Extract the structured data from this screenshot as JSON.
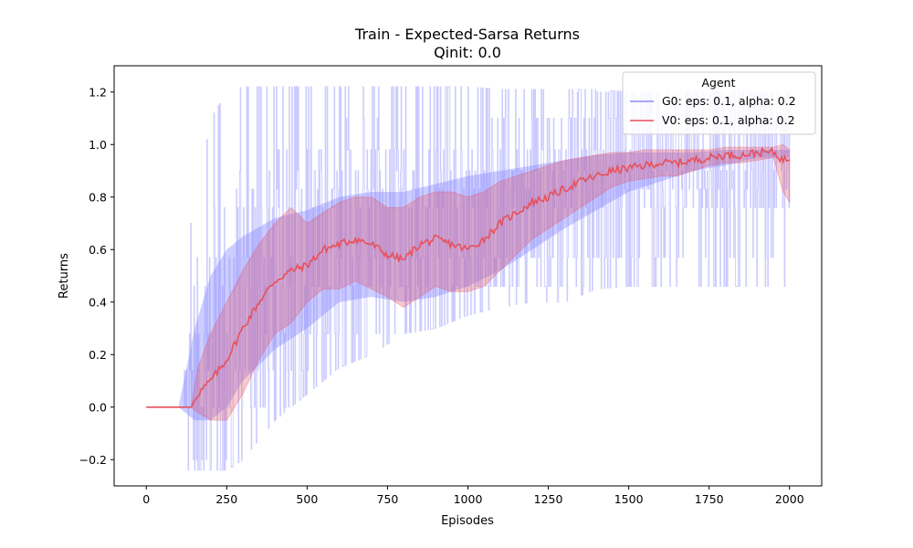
{
  "chart_data": {
    "type": "line",
    "title": "Train - Expected-Sarsa Returns",
    "subtitle": "Qinit: 0.0",
    "xlabel": "Episodes",
    "ylabel": "Returns",
    "xlim": [
      -100,
      2100
    ],
    "ylim": [
      -0.3,
      1.3
    ],
    "xticks": [
      0,
      250,
      500,
      750,
      1000,
      1250,
      1500,
      1750,
      2000
    ],
    "yticks": [
      -0.2,
      0.0,
      0.2,
      0.4,
      0.6,
      0.8,
      1.0,
      1.2
    ],
    "legend": {
      "title": "Agent",
      "position": "top-right"
    },
    "series": [
      {
        "name": "G0: eps: 0.1, alpha: 0.2",
        "color": "#6f6fff",
        "style": "noisy-band",
        "x": [
          0,
          100,
          150,
          200,
          250,
          300,
          400,
          500,
          600,
          700,
          800,
          900,
          1000,
          1100,
          1200,
          1300,
          1400,
          1500,
          1600,
          1700,
          1800,
          1900,
          2000
        ],
        "mean": [
          0.0,
          0.0,
          0.05,
          0.12,
          0.22,
          0.32,
          0.45,
          0.5,
          0.6,
          0.62,
          0.6,
          0.62,
          0.66,
          0.72,
          0.78,
          0.82,
          0.86,
          0.9,
          0.93,
          0.95,
          0.96,
          0.97,
          0.97
        ],
        "upper": [
          0.0,
          0.0,
          0.3,
          0.5,
          0.6,
          0.65,
          0.72,
          0.75,
          0.8,
          0.82,
          0.82,
          0.85,
          0.88,
          0.9,
          0.92,
          0.94,
          0.96,
          0.97,
          0.97,
          0.97,
          0.98,
          0.98,
          0.98
        ],
        "lower": [
          0.0,
          0.0,
          -0.05,
          -0.05,
          0.0,
          0.1,
          0.22,
          0.3,
          0.4,
          0.42,
          0.4,
          0.42,
          0.46,
          0.52,
          0.6,
          0.68,
          0.75,
          0.82,
          0.86,
          0.9,
          0.92,
          0.95,
          0.95
        ],
        "max_envelope": [
          0.51,
          0.51,
          0.76,
          1.1,
          1.2,
          1.22,
          1.22,
          1.22,
          1.22,
          1.22,
          1.22,
          1.22,
          1.22,
          1.21,
          1.21,
          1.21,
          1.21,
          1.2,
          1.2,
          1.2,
          1.2,
          1.2,
          1.2
        ],
        "min_envelope": [
          -0.24,
          -0.24,
          -0.24,
          -0.24,
          -0.24,
          -0.2,
          -0.05,
          0.05,
          0.15,
          0.2,
          0.28,
          0.3,
          0.35,
          0.38,
          0.4,
          0.4,
          0.45,
          0.46,
          0.46,
          0.46,
          0.46,
          0.46,
          0.46
        ]
      },
      {
        "name": "V0: eps: 0.1, alpha: 0.2",
        "color": "#e8505b",
        "style": "smoothed-band",
        "x": [
          0,
          140,
          160,
          200,
          250,
          300,
          350,
          400,
          450,
          500,
          550,
          600,
          650,
          700,
          750,
          800,
          850,
          900,
          950,
          1000,
          1050,
          1100,
          1150,
          1200,
          1250,
          1300,
          1350,
          1400,
          1450,
          1500,
          1550,
          1600,
          1650,
          1700,
          1750,
          1800,
          1850,
          1900,
          1950,
          1980,
          2000
        ],
        "mean": [
          0.0,
          0.0,
          0.05,
          0.1,
          0.18,
          0.3,
          0.4,
          0.48,
          0.52,
          0.54,
          0.6,
          0.62,
          0.64,
          0.62,
          0.58,
          0.56,
          0.62,
          0.64,
          0.62,
          0.6,
          0.64,
          0.7,
          0.74,
          0.78,
          0.8,
          0.83,
          0.86,
          0.88,
          0.9,
          0.91,
          0.92,
          0.93,
          0.93,
          0.94,
          0.95,
          0.96,
          0.96,
          0.97,
          0.97,
          0.94,
          0.95
        ],
        "upper": [
          0.0,
          0.0,
          0.15,
          0.28,
          0.4,
          0.52,
          0.62,
          0.7,
          0.76,
          0.7,
          0.74,
          0.78,
          0.8,
          0.8,
          0.76,
          0.76,
          0.8,
          0.82,
          0.82,
          0.8,
          0.82,
          0.86,
          0.88,
          0.9,
          0.92,
          0.94,
          0.95,
          0.96,
          0.97,
          0.97,
          0.98,
          0.98,
          0.98,
          0.98,
          0.98,
          0.99,
          0.99,
          0.99,
          0.99,
          1.0,
          0.98
        ],
        "lower": [
          0.0,
          0.0,
          -0.02,
          -0.05,
          -0.05,
          0.05,
          0.18,
          0.28,
          0.32,
          0.4,
          0.45,
          0.45,
          0.48,
          0.45,
          0.42,
          0.38,
          0.42,
          0.46,
          0.44,
          0.44,
          0.46,
          0.52,
          0.58,
          0.64,
          0.68,
          0.72,
          0.76,
          0.8,
          0.84,
          0.86,
          0.87,
          0.88,
          0.88,
          0.9,
          0.92,
          0.93,
          0.93,
          0.94,
          0.95,
          0.82,
          0.78
        ]
      }
    ]
  }
}
